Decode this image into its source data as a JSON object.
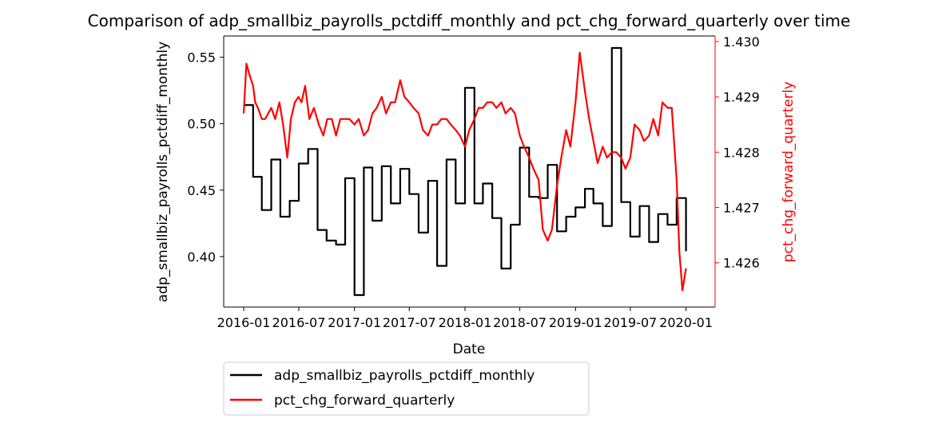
{
  "chart_data": {
    "type": "line",
    "title": "Comparison of adp_smallbiz_payrolls_pctdiff_monthly and pct_chg_forward_quarterly over time",
    "xlabel": "Date",
    "x_tick_labels": [
      "2016-01",
      "2016-07",
      "2017-01",
      "2017-07",
      "2018-01",
      "2018-07",
      "2019-01",
      "2019-07",
      "2020-01"
    ],
    "x_ticks": [
      "2016-01-01",
      "2016-07-01",
      "2017-01-01",
      "2017-07-01",
      "2018-01-01",
      "2018-07-01",
      "2019-01-01",
      "2019-07-01",
      "2020-01-01"
    ],
    "xlim": [
      "2015-10-27",
      "2020-04-06"
    ],
    "y_left": {
      "label": "adp_smallbiz_payrolls_pctdiff_monthly",
      "ticks": [
        0.4,
        0.45,
        0.5,
        0.55
      ],
      "tick_labels": [
        "0.40",
        "0.45",
        "0.50",
        "0.55"
      ],
      "ylim": [
        0.362,
        0.566
      ],
      "color": "#000000"
    },
    "y_right": {
      "label": "pct_chg_forward_quarterly",
      "ticks": [
        1.426,
        1.427,
        1.428,
        1.429,
        1.43
      ],
      "tick_labels": [
        "1.426",
        "1.427",
        "1.428",
        "1.429",
        "1.430"
      ],
      "ylim": [
        1.4252,
        1.4301
      ],
      "color": "#ff0000"
    },
    "legend_placement": "below",
    "series": [
      {
        "name": "adp_smallbiz_payrolls_pctdiff_monthly",
        "axis": "left",
        "color": "#000000",
        "style": "step",
        "x": [
          "2016-01-01",
          "2016-02-01",
          "2016-03-01",
          "2016-04-01",
          "2016-05-01",
          "2016-06-01",
          "2016-07-01",
          "2016-08-01",
          "2016-09-01",
          "2016-10-01",
          "2016-11-01",
          "2016-12-01",
          "2017-01-01",
          "2017-02-01",
          "2017-03-01",
          "2017-04-01",
          "2017-05-01",
          "2017-06-01",
          "2017-07-01",
          "2017-08-01",
          "2017-09-01",
          "2017-10-01",
          "2017-11-01",
          "2017-12-01",
          "2018-01-01",
          "2018-02-01",
          "2018-03-01",
          "2018-04-01",
          "2018-05-01",
          "2018-06-01",
          "2018-07-01",
          "2018-08-01",
          "2018-09-01",
          "2018-10-01",
          "2018-11-01",
          "2018-12-01",
          "2019-01-01",
          "2019-02-01",
          "2019-03-01",
          "2019-04-01",
          "2019-05-01",
          "2019-06-01",
          "2019-07-01",
          "2019-08-01",
          "2019-09-01",
          "2019-10-01",
          "2019-11-01",
          "2019-12-01",
          "2020-01-01"
        ],
        "values": [
          0.514,
          0.46,
          0.435,
          0.473,
          0.43,
          0.442,
          0.47,
          0.481,
          0.42,
          0.412,
          0.409,
          0.459,
          0.371,
          0.467,
          0.427,
          0.468,
          0.44,
          0.466,
          0.447,
          0.418,
          0.457,
          0.393,
          0.473,
          0.44,
          0.527,
          0.44,
          0.455,
          0.429,
          0.391,
          0.424,
          0.482,
          0.445,
          0.444,
          0.469,
          0.419,
          0.43,
          0.437,
          0.451,
          0.44,
          0.423,
          0.557,
          0.441,
          0.415,
          0.438,
          0.411,
          0.432,
          0.424,
          0.444,
          0.404
        ]
      },
      {
        "name": "pct_chg_forward_quarterly",
        "axis": "right",
        "color": "#ff0000",
        "style": "line",
        "x": [
          "2016-01-01",
          "2016-01-10",
          "2016-01-20",
          "2016-02-01",
          "2016-02-08",
          "2016-02-17",
          "2016-03-01",
          "2016-03-12",
          "2016-04-01",
          "2016-04-14",
          "2016-04-28",
          "2016-05-10",
          "2016-05-24",
          "2016-06-05",
          "2016-06-18",
          "2016-06-30",
          "2016-07-10",
          "2016-07-22",
          "2016-08-05",
          "2016-08-20",
          "2016-09-05",
          "2016-09-20",
          "2016-10-03",
          "2016-10-18",
          "2016-11-01",
          "2016-11-15",
          "2016-12-01",
          "2016-12-15",
          "2017-01-01",
          "2017-01-15",
          "2017-02-01",
          "2017-02-15",
          "2017-03-01",
          "2017-03-15",
          "2017-04-01",
          "2017-04-15",
          "2017-05-01",
          "2017-05-15",
          "2017-06-01",
          "2017-06-15",
          "2017-07-01",
          "2017-07-15",
          "2017-08-01",
          "2017-08-15",
          "2017-09-01",
          "2017-09-15",
          "2017-10-01",
          "2017-10-15",
          "2017-11-01",
          "2017-11-15",
          "2017-12-01",
          "2017-12-15",
          "2018-01-01",
          "2018-01-15",
          "2018-02-01",
          "2018-02-15",
          "2018-03-01",
          "2018-03-15",
          "2018-04-01",
          "2018-04-15",
          "2018-05-01",
          "2018-05-15",
          "2018-06-01",
          "2018-06-15",
          "2018-07-01",
          "2018-07-15",
          "2018-08-01",
          "2018-08-15",
          "2018-09-01",
          "2018-09-15",
          "2018-10-01",
          "2018-10-15",
          "2018-11-01",
          "2018-11-15",
          "2018-12-01",
          "2018-12-15",
          "2019-01-01",
          "2019-01-15",
          "2019-02-01",
          "2019-02-15",
          "2019-03-01",
          "2019-03-15",
          "2019-04-01",
          "2019-04-15",
          "2019-05-01",
          "2019-05-15",
          "2019-06-01",
          "2019-06-15",
          "2019-07-01",
          "2019-07-15",
          "2019-08-01",
          "2019-08-15",
          "2019-09-01",
          "2019-09-15",
          "2019-10-01",
          "2019-10-15",
          "2019-11-01",
          "2019-11-15",
          "2019-12-01",
          "2019-12-10",
          "2019-12-20",
          "2020-01-01"
        ],
        "values": [
          1.4287,
          1.4296,
          1.4294,
          1.4292,
          1.4289,
          1.4288,
          1.4286,
          1.4286,
          1.4288,
          1.4286,
          1.4289,
          1.4285,
          1.4279,
          1.4286,
          1.4289,
          1.429,
          1.4289,
          1.4292,
          1.4286,
          1.4288,
          1.4285,
          1.4283,
          1.4286,
          1.4286,
          1.4283,
          1.4286,
          1.4286,
          1.4286,
          1.4285,
          1.4286,
          1.4283,
          1.4284,
          1.4287,
          1.4288,
          1.429,
          1.4287,
          1.4289,
          1.4289,
          1.4293,
          1.429,
          1.4289,
          1.4288,
          1.4287,
          1.4284,
          1.4283,
          1.4285,
          1.4285,
          1.4286,
          1.4286,
          1.4285,
          1.4284,
          1.4283,
          1.4281,
          1.4284,
          1.4286,
          1.4288,
          1.4288,
          1.4289,
          1.4289,
          1.4288,
          1.4289,
          1.4287,
          1.4288,
          1.4287,
          1.4283,
          1.4281,
          1.4279,
          1.4277,
          1.4275,
          1.4266,
          1.4264,
          1.4266,
          1.4274,
          1.4279,
          1.4284,
          1.4281,
          1.4289,
          1.4298,
          1.4291,
          1.4286,
          1.4282,
          1.4278,
          1.4281,
          1.4279,
          1.428,
          1.428,
          1.4279,
          1.4277,
          1.4279,
          1.4285,
          1.4284,
          1.4282,
          1.4283,
          1.4286,
          1.4283,
          1.4289,
          1.4288,
          1.4288,
          1.4275,
          1.4262,
          1.4255,
          1.4259
        ]
      }
    ]
  }
}
